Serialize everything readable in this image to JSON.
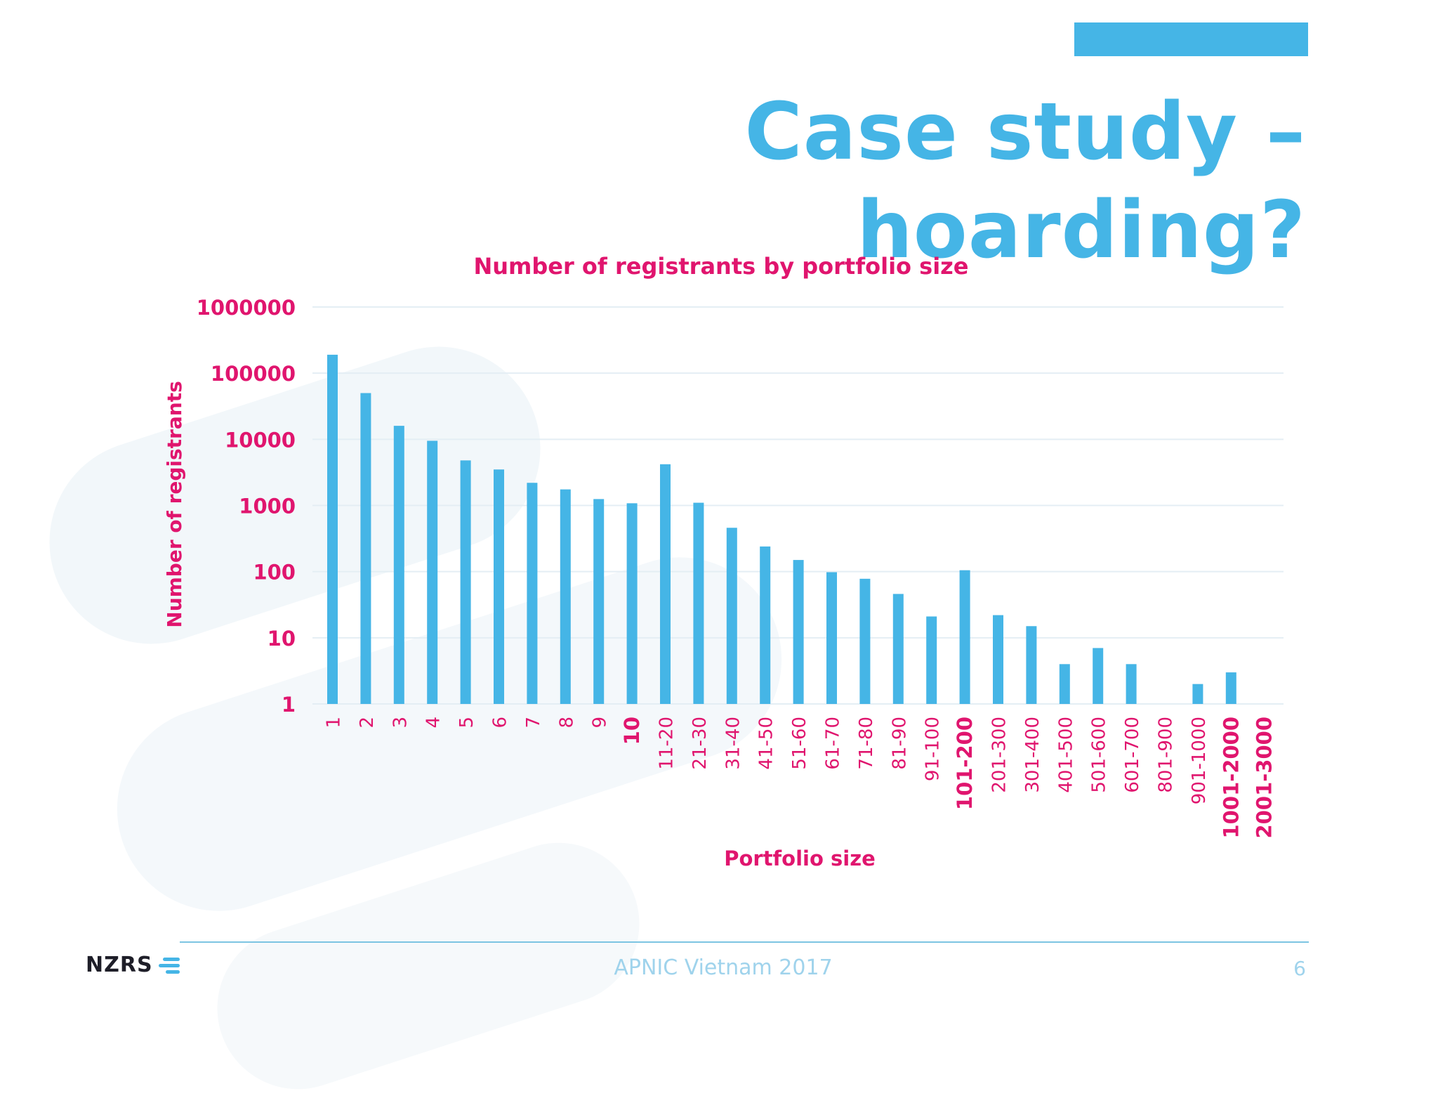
{
  "slide": {
    "title": "Case study – hoarding?",
    "footer_center": "APNIC Vietnam 2017",
    "page_number": "6",
    "logo_text": "NZRS",
    "colors": {
      "title": "#45b5e6",
      "accent": "#45b5e6",
      "label": "#e0156e",
      "footer": "#9fd3ec"
    }
  },
  "chart_data": {
    "type": "bar",
    "title": "Number of registrants by portfolio size",
    "xlabel": "Portfolio size",
    "ylabel": "Number of registrants",
    "scale": "log",
    "ylim": [
      1,
      1000000
    ],
    "yticks": [
      "1000000",
      "100000",
      "10000",
      "1000",
      "100",
      "10",
      "1"
    ],
    "grid": true,
    "categories": [
      "1",
      "2",
      "3",
      "4",
      "5",
      "6",
      "7",
      "8",
      "9",
      "10",
      "11-20",
      "21-30",
      "31-40",
      "41-50",
      "51-60",
      "61-70",
      "71-80",
      "81-90",
      "91-100",
      "101-200",
      "201-300",
      "301-400",
      "401-500",
      "501-600",
      "601-700",
      "801-900",
      "901-1000",
      "1001-2000",
      "2001-3000"
    ],
    "emphasized_categories": [
      "10",
      "101-200",
      "1001-2000",
      "2001-3000"
    ],
    "values": [
      190000,
      50000,
      16000,
      9500,
      4800,
      3500,
      2200,
      1750,
      1250,
      1080,
      4200,
      1100,
      460,
      240,
      150,
      98,
      78,
      46,
      21,
      105,
      22,
      15,
      4,
      7,
      4,
      1,
      2,
      3,
      1
    ],
    "bar_color": "#45b5e6",
    "text_color": "#e0156e"
  }
}
